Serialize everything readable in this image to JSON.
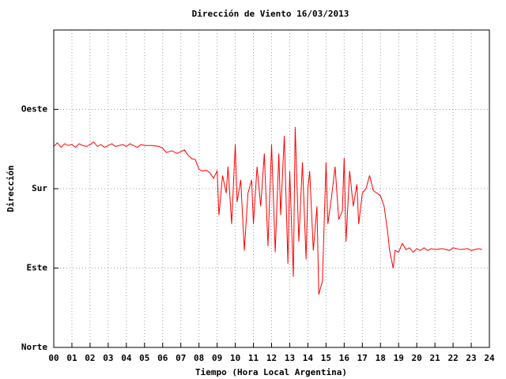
{
  "chart_data": {
    "type": "line",
    "title": "Dirección de Viento 16/03/2013",
    "xlabel": "Tiempo (Hora Local Argentina)",
    "ylabel": "Dirección",
    "grid": true,
    "xlim": [
      0,
      24
    ],
    "xticks": [
      {
        "value": 0,
        "label": "00"
      },
      {
        "value": 1,
        "label": "01"
      },
      {
        "value": 2,
        "label": "02"
      },
      {
        "value": 3,
        "label": "03"
      },
      {
        "value": 4,
        "label": "04"
      },
      {
        "value": 5,
        "label": "05"
      },
      {
        "value": 6,
        "label": "06"
      },
      {
        "value": 7,
        "label": "07"
      },
      {
        "value": 8,
        "label": "08"
      },
      {
        "value": 9,
        "label": "09"
      },
      10,
      11,
      12,
      13,
      14,
      15,
      16,
      17,
      18,
      19,
      20,
      21,
      22,
      23,
      24
    ],
    "ylim": [
      0,
      360
    ],
    "yticks": [
      {
        "value": 0,
        "label": "Norte"
      },
      {
        "value": 90,
        "label": "Este"
      },
      {
        "value": 180,
        "label": "Sur"
      },
      {
        "value": 270,
        "label": "Oeste"
      }
    ],
    "series": [
      {
        "color": "#ff0000",
        "x": [
          0,
          0.2,
          0.4,
          0.6,
          0.8,
          1.0,
          1.2,
          1.4,
          1.6,
          1.8,
          2.0,
          2.2,
          2.4,
          2.6,
          2.8,
          3.0,
          3.2,
          3.4,
          3.6,
          3.8,
          4.0,
          4.2,
          4.4,
          4.6,
          4.8,
          5.0,
          5.4,
          5.8,
          6.0,
          6.2,
          6.5,
          6.8,
          7.0,
          7.2,
          7.4,
          7.6,
          7.8,
          8.0,
          8.2,
          8.4,
          8.6,
          8.8,
          9.0,
          9.1,
          9.3,
          9.5,
          9.6,
          9.8,
          10.0,
          10.1,
          10.3,
          10.5,
          10.7,
          10.9,
          11.0,
          11.2,
          11.4,
          11.6,
          11.8,
          12.0,
          12.2,
          12.4,
          12.5,
          12.7,
          12.9,
          13.0,
          13.2,
          13.3,
          13.5,
          13.7,
          13.9,
          14.0,
          14.1,
          14.3,
          14.5,
          14.6,
          14.8,
          15.0,
          15.1,
          15.3,
          15.5,
          15.7,
          15.9,
          16.0,
          16.1,
          16.3,
          16.5,
          16.7,
          16.8,
          17.0,
          17.2,
          17.4,
          17.6,
          18.0,
          18.2,
          18.4,
          18.5,
          18.7,
          18.8,
          19.0,
          19.2,
          19.4,
          19.6,
          19.8,
          20.0,
          20.2,
          20.4,
          20.6,
          20.8,
          21.0,
          21.4,
          21.8,
          22.0,
          22.4,
          22.8,
          23.0,
          23.4,
          23.6
        ],
        "values": [
          228,
          232,
          227,
          231,
          229,
          230,
          227,
          231,
          229,
          228,
          230,
          233,
          228,
          230,
          227,
          229,
          231,
          228,
          229,
          230,
          228,
          231,
          229,
          227,
          230,
          229,
          229,
          228,
          226,
          221,
          223,
          220,
          222,
          224,
          218,
          214,
          213,
          202,
          200,
          201,
          198,
          192,
          200,
          150,
          195,
          175,
          205,
          140,
          230,
          165,
          190,
          110,
          175,
          190,
          140,
          205,
          160,
          220,
          115,
          230,
          108,
          220,
          150,
          240,
          95,
          200,
          80,
          250,
          120,
          210,
          100,
          180,
          200,
          110,
          160,
          60,
          75,
          210,
          140,
          170,
          205,
          145,
          155,
          215,
          120,
          200,
          160,
          185,
          140,
          175,
          180,
          195,
          178,
          172,
          160,
          130,
          110,
          90,
          110,
          108,
          118,
          111,
          113,
          108,
          112,
          110,
          113,
          110,
          112,
          111,
          112,
          110,
          113,
          111,
          112,
          110,
          112,
          111
        ]
      }
    ]
  }
}
